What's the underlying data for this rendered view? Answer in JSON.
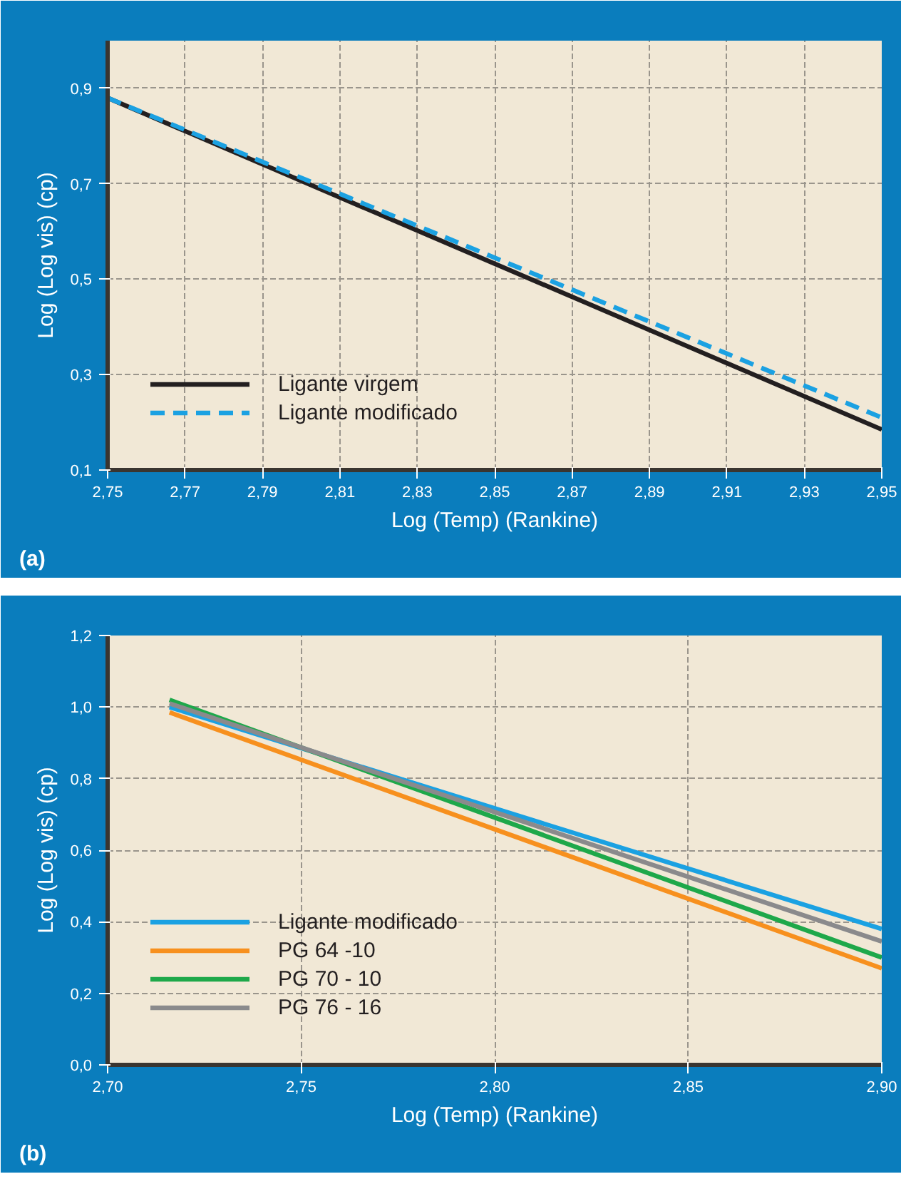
{
  "chart_data": [
    {
      "type": "line",
      "xlabel": "Log (Temp) (Rankine)",
      "ylabel": "Log (Log vis) (cp)",
      "annotations": [
        "(a)"
      ],
      "xlim": [
        2.75,
        2.95
      ],
      "ylim": [
        0.1,
        1.0
      ],
      "xticks": [
        {
          "value": 2.75,
          "label": "2,75"
        },
        {
          "value": 2.77,
          "label": "2,77"
        },
        {
          "value": 2.79,
          "label": "2,79"
        },
        {
          "value": 2.81,
          "label": "2,81"
        },
        {
          "value": 2.83,
          "label": "2,83"
        },
        {
          "value": 2.85,
          "label": "2,85"
        },
        {
          "value": 2.87,
          "label": "2,87"
        },
        {
          "value": 2.89,
          "label": "2,89"
        },
        {
          "value": 2.91,
          "label": "2,91"
        },
        {
          "value": 2.93,
          "label": "2,93"
        },
        {
          "value": 2.95,
          "label": "2,95"
        }
      ],
      "yticks": [
        {
          "value": 0.1,
          "label": "0,1"
        },
        {
          "value": 0.3,
          "label": "0,3"
        },
        {
          "value": 0.5,
          "label": "0,5"
        },
        {
          "value": 0.7,
          "label": "0,7"
        },
        {
          "value": 0.9,
          "label": "0,9"
        }
      ],
      "grid": true,
      "legend": "bottom left",
      "marker": "none",
      "series": [
        {
          "name": "Ligante virgem",
          "color": "#231f20",
          "line_style": "solid",
          "x": [
            2.75,
            2.95
          ],
          "values": [
            0.88,
            0.185
          ]
        },
        {
          "name": "Ligante modificado",
          "color": "#1ba1e2",
          "line_style": "dashed",
          "x": [
            2.75,
            2.95
          ],
          "values": [
            0.88,
            0.21
          ]
        }
      ]
    },
    {
      "type": "line",
      "xlabel": "Log (Temp) (Rankine)",
      "ylabel": "Log (Log vis) (cp)",
      "annotations": [
        "(b)"
      ],
      "xlim": [
        2.7,
        2.9
      ],
      "ylim": [
        0.0,
        1.2
      ],
      "xticks": [
        {
          "value": 2.7,
          "label": "2,70"
        },
        {
          "value": 2.75,
          "label": "2,75"
        },
        {
          "value": 2.8,
          "label": "2,80"
        },
        {
          "value": 2.85,
          "label": "2,85"
        },
        {
          "value": 2.9,
          "label": "2,90"
        }
      ],
      "yticks": [
        {
          "value": 0.0,
          "label": "0,0"
        },
        {
          "value": 0.2,
          "label": "0,2"
        },
        {
          "value": 0.4,
          "label": "0,4"
        },
        {
          "value": 0.6,
          "label": "0,6"
        },
        {
          "value": 0.8,
          "label": "0,8"
        },
        {
          "value": 1.0,
          "label": "1,0"
        },
        {
          "value": 1.2,
          "label": "1,2"
        }
      ],
      "grid": true,
      "legend": "bottom left",
      "marker": "none",
      "series": [
        {
          "name": "Ligante modificado",
          "color": "#1ba1e2",
          "x": [
            2.716,
            2.9
          ],
          "values": [
            1.0,
            0.38
          ]
        },
        {
          "name": "PG 64 -10",
          "color": "#f7901e",
          "x": [
            2.716,
            2.9
          ],
          "values": [
            0.985,
            0.27
          ]
        },
        {
          "name": "PG 70 - 10",
          "color": "#1ea84a",
          "x": [
            2.716,
            2.9
          ],
          "values": [
            1.02,
            0.3
          ]
        },
        {
          "name": "PG 76 - 16",
          "color": "#8a8a8c",
          "x": [
            2.716,
            2.9
          ],
          "values": [
            1.01,
            0.345
          ]
        }
      ]
    }
  ]
}
